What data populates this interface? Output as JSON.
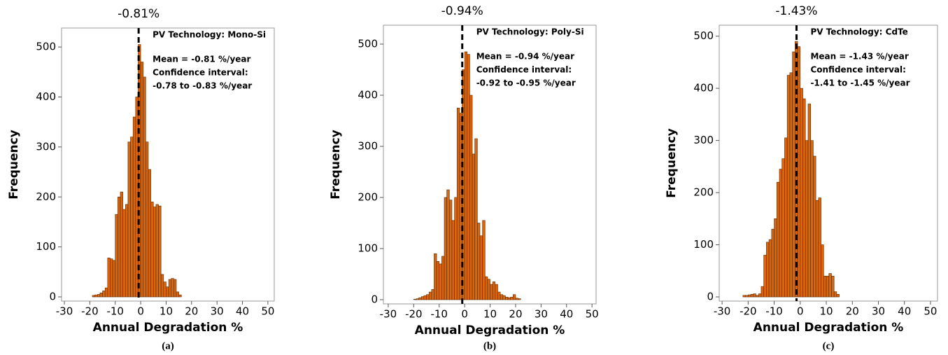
{
  "chart_data": [
    {
      "type": "histogram",
      "x_label": "Annual Degradation %",
      "y_label": "Frequency",
      "caption": "(a)",
      "mean_line": {
        "value": -0.81,
        "label": "-0.81%"
      },
      "annotations": [
        "PV Technology: Mono-Si",
        "Mean = -0.81 %/year",
        "Confidence interval:",
        "-0.78 to -0.83 %/year"
      ],
      "color": "#d9650f",
      "edge_color": "#5a2a00",
      "bins": [
        -19,
        -18,
        -17,
        -16,
        -15,
        -14,
        -13,
        -12,
        -11,
        -10,
        -9,
        -8,
        -7,
        -6,
        -5,
        -4,
        -3,
        -2,
        -1,
        0,
        1,
        2,
        3,
        4,
        5,
        6,
        7,
        8,
        9,
        10,
        11,
        12,
        13,
        14,
        15,
        16
      ],
      "counts": [
        3,
        4,
        5,
        8,
        12,
        18,
        78,
        76,
        73,
        165,
        200,
        210,
        175,
        185,
        310,
        320,
        360,
        400,
        505,
        470,
        440,
        310,
        255,
        190,
        180,
        185,
        182,
        45,
        30,
        20,
        35,
        37,
        35,
        10,
        4
      ],
      "xlim": [
        -31.1,
        52.5
      ],
      "ylim": [
        -8.4,
        538
      ],
      "xticks": [
        -30,
        -20,
        -10,
        0,
        10,
        20,
        30,
        40,
        50
      ],
      "yticks": [
        0,
        100,
        200,
        300,
        400,
        500
      ]
    },
    {
      "type": "histogram",
      "x_label": "Annual Degradation %",
      "y_label": "Frequency",
      "caption": "(b)",
      "mean_line": {
        "value": -0.94,
        "label": "-0.94%"
      },
      "annotations": [
        "PV Technology: Poly-Si",
        "Mean = -0.94 %/year",
        "Confidence interval:",
        "-0.92 to -0.95 %/year"
      ],
      "color": "#d9650f",
      "edge_color": "#5a2a00",
      "bins": [
        -20,
        -19,
        -18,
        -17,
        -16,
        -15,
        -14,
        -13,
        -12,
        -11,
        -10,
        -9,
        -8,
        -7,
        -6,
        -5,
        -4,
        -3,
        -2,
        -1,
        0,
        1,
        2,
        3,
        4,
        5,
        6,
        7,
        8,
        9,
        10,
        11,
        12,
        13,
        14,
        15,
        16,
        17,
        18,
        19,
        20,
        21,
        22
      ],
      "counts": [
        1,
        2,
        4,
        6,
        8,
        10,
        15,
        20,
        90,
        75,
        70,
        85,
        200,
        215,
        195,
        155,
        200,
        375,
        365,
        450,
        485,
        480,
        400,
        285,
        315,
        150,
        125,
        155,
        45,
        40,
        30,
        35,
        30,
        15,
        10,
        8,
        5,
        4,
        5,
        10,
        3,
        2
      ],
      "xlim": [
        -31.9,
        51.6
      ],
      "ylim": [
        -8.2,
        537
      ],
      "xticks": [
        -30,
        -20,
        -10,
        0,
        10,
        20,
        30,
        40,
        50
      ],
      "yticks": [
        0,
        100,
        200,
        300,
        400,
        500
      ]
    },
    {
      "type": "histogram",
      "x_label": "Annual Degradation %",
      "y_label": "Frequency",
      "caption": "(c)",
      "mean_line": {
        "value": -1.43,
        "label": "-1.43%"
      },
      "annotations": [
        "PV Technology: CdTe",
        "Mean = -1.43 %/year",
        "Confidence interval:",
        "-1.41 to -1.45 %/year"
      ],
      "color": "#d9650f",
      "edge_color": "#5a2a00",
      "bins": [
        -22,
        -21,
        -20,
        -19,
        -18,
        -17,
        -16,
        -15,
        -14,
        -13,
        -12,
        -11,
        -10,
        -9,
        -8,
        -7,
        -6,
        -5,
        -4,
        -3,
        -2,
        -1,
        0,
        1,
        2,
        3,
        4,
        5,
        6,
        7,
        8,
        9,
        10,
        11,
        12,
        13,
        14,
        15
      ],
      "counts": [
        3,
        3,
        4,
        5,
        6,
        3,
        6,
        20,
        80,
        105,
        110,
        130,
        150,
        220,
        245,
        265,
        305,
        425,
        430,
        470,
        490,
        480,
        400,
        380,
        300,
        370,
        300,
        270,
        185,
        190,
        100,
        40,
        40,
        45,
        40,
        10,
        5
      ],
      "xlim": [
        -31.1,
        52.7
      ],
      "ylim": [
        -8,
        521
      ],
      "xticks": [
        -30,
        -20,
        -10,
        0,
        10,
        20,
        30,
        40,
        50
      ],
      "yticks": [
        0,
        100,
        200,
        300,
        400,
        500
      ]
    }
  ]
}
